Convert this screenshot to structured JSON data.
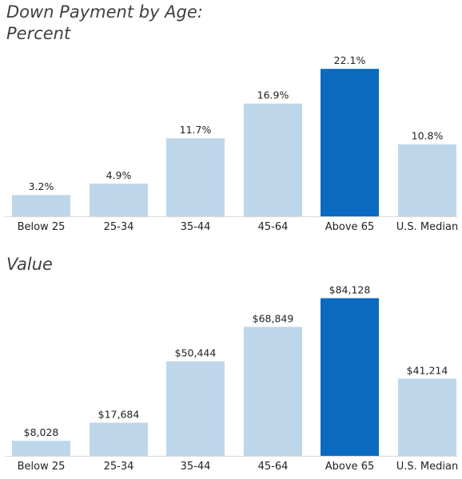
{
  "chart_data": [
    {
      "type": "bar",
      "title_line1": "Down Payment by Age:",
      "title_line2": "Percent",
      "categories": [
        "Below 25",
        "25-34",
        "35-44",
        "45-64",
        "Above 65",
        "U.S. Median"
      ],
      "values": [
        3.2,
        4.9,
        11.7,
        16.9,
        22.1,
        10.8
      ],
      "value_labels": [
        "3.2%",
        "4.9%",
        "11.7%",
        "16.9%",
        "22.1%",
        "10.8%"
      ],
      "unit": "%",
      "ylim": [
        0,
        25
      ],
      "highlight_index": 4,
      "grid": false,
      "legend": "none"
    },
    {
      "type": "bar",
      "title": "Value",
      "categories": [
        "Below 25",
        "25-34",
        "35-44",
        "45-64",
        "Above 65",
        "U.S. Median"
      ],
      "values": [
        8028,
        17684,
        50444,
        68849,
        84128,
        41214
      ],
      "value_labels": [
        "$8,028",
        "$17,684",
        "$50,444",
        "$68,849",
        "$84,128",
        "$41,214"
      ],
      "unit": "$",
      "ylim": [
        0,
        95000
      ],
      "highlight_index": 4,
      "grid": false,
      "legend": "none"
    }
  ],
  "colors": {
    "bar": "#bed6ea",
    "highlight": "#0a6abf",
    "axis": "#d9d9d9",
    "title": "#3f3f3f",
    "text": "#222222"
  }
}
